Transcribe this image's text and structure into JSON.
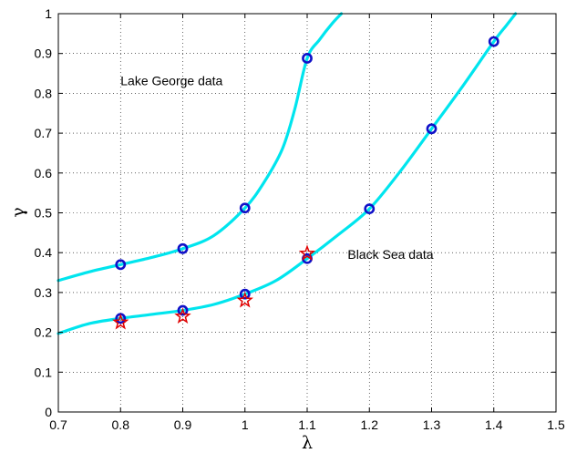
{
  "chart_data": {
    "type": "scatter",
    "xlabel": "λ",
    "ylabel": "γ",
    "xlim": [
      0.7,
      1.5
    ],
    "ylim": [
      0,
      1
    ],
    "x_ticks": [
      "0.7",
      "0.8",
      "0.9",
      "1",
      "1.1",
      "1.2",
      "1.3",
      "1.4",
      "1.5"
    ],
    "y_ticks": [
      "0",
      "0.1",
      "0.2",
      "0.3",
      "0.4",
      "0.5",
      "0.6",
      "0.7",
      "0.8",
      "0.9",
      "1"
    ],
    "grid": true,
    "grid_style": "dotted",
    "curve_color": "#00e5ee",
    "circle_color": "#1010c8",
    "star_color": "#e00000",
    "annotations": [
      {
        "text": "Lake George data",
        "x": 0.8,
        "y": 0.82
      },
      {
        "text": "Black Sea data",
        "x": 1.165,
        "y": 0.385
      }
    ],
    "series": [
      {
        "marker": "circle",
        "x": [
          0.8,
          0.9,
          1.0,
          1.1
        ],
        "y": [
          0.37,
          0.41,
          0.512,
          0.888
        ]
      },
      {
        "marker": "circle",
        "x": [
          0.8,
          0.9,
          1.0,
          1.1,
          1.2,
          1.3,
          1.4
        ],
        "y": [
          0.235,
          0.255,
          0.296,
          0.385,
          0.51,
          0.711,
          0.93
        ]
      },
      {
        "marker": "star",
        "x": [
          0.8,
          0.9,
          1.0,
          1.1
        ],
        "y": [
          0.225,
          0.24,
          0.28,
          0.398
        ]
      }
    ],
    "curves": [
      {
        "x": [
          0.7,
          0.75,
          0.8,
          0.85,
          0.9,
          0.95,
          1.0,
          1.03,
          1.06,
          1.08,
          1.1,
          1.12,
          1.14,
          1.155
        ],
        "y": [
          0.33,
          0.352,
          0.37,
          0.388,
          0.41,
          0.443,
          0.512,
          0.575,
          0.66,
          0.76,
          0.888,
          0.935,
          0.975,
          1.0
        ]
      },
      {
        "x": [
          0.7,
          0.75,
          0.8,
          0.85,
          0.9,
          0.95,
          1.0,
          1.05,
          1.1,
          1.15,
          1.2,
          1.25,
          1.3,
          1.35,
          1.4,
          1.42,
          1.435
        ],
        "y": [
          0.197,
          0.222,
          0.235,
          0.245,
          0.255,
          0.27,
          0.296,
          0.33,
          0.385,
          0.445,
          0.51,
          0.605,
          0.711,
          0.818,
          0.93,
          0.97,
          1.0
        ]
      }
    ]
  }
}
